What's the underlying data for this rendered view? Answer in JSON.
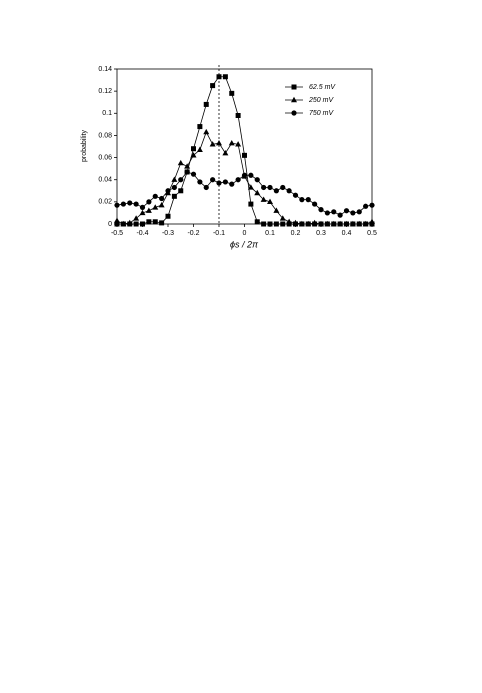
{
  "chart_data": {
    "type": "line",
    "x_label": "ϕs / 2π",
    "y_label": "probability",
    "x": [
      -0.5,
      -0.475,
      -0.45,
      -0.425,
      -0.4,
      -0.375,
      -0.35,
      -0.325,
      -0.3,
      -0.275,
      -0.25,
      -0.225,
      -0.2,
      -0.175,
      -0.15,
      -0.125,
      -0.1,
      -0.075,
      -0.05,
      -0.025,
      0,
      0.025,
      0.05,
      0.075,
      0.1,
      0.125,
      0.15,
      0.175,
      0.2,
      0.225,
      0.25,
      0.275,
      0.3,
      0.325,
      0.35,
      0.375,
      0.4,
      0.425,
      0.45,
      0.475,
      0.5
    ],
    "series": [
      {
        "name": "62.5 mV",
        "color": "#000000",
        "marker": "square",
        "values": [
          0,
          0,
          0,
          0,
          0,
          0.002,
          0.002,
          0.001,
          0.007,
          0.025,
          0.03,
          0.047,
          0.068,
          0.088,
          0.108,
          0.125,
          0.133,
          0.133,
          0.118,
          0.098,
          0.062,
          0.018,
          0.002,
          0,
          0,
          0,
          0,
          0,
          0,
          0,
          0,
          0,
          0,
          0,
          0,
          0,
          0,
          0,
          0,
          0,
          0
        ]
      },
      {
        "name": "250 mV",
        "color": "#000000",
        "marker": "triangle",
        "values": [
          0.003,
          0,
          0.001,
          0.005,
          0.01,
          0.012,
          0.015,
          0.017,
          0.028,
          0.04,
          0.055,
          0.052,
          0.062,
          0.067,
          0.083,
          0.072,
          0.073,
          0.064,
          0.073,
          0.072,
          0.043,
          0.033,
          0.028,
          0.022,
          0.02,
          0.012,
          0.005,
          0.002,
          0.001,
          0,
          0,
          0.001,
          0,
          0,
          0,
          0,
          0,
          0,
          0,
          0,
          0.002
        ]
      },
      {
        "name": "750 mV",
        "color": "#000000",
        "marker": "circle",
        "values": [
          0.017,
          0.018,
          0.019,
          0.018,
          0.015,
          0.02,
          0.025,
          0.023,
          0.03,
          0.033,
          0.04,
          0.047,
          0.045,
          0.038,
          0.033,
          0.04,
          0.037,
          0.038,
          0.036,
          0.04,
          0.044,
          0.044,
          0.04,
          0.033,
          0.033,
          0.03,
          0.033,
          0.03,
          0.026,
          0.022,
          0.022,
          0.018,
          0.013,
          0.01,
          0.011,
          0.008,
          0.012,
          0.01,
          0.011,
          0.016,
          0.017
        ]
      }
    ],
    "xlim": [
      -0.5,
      0.5
    ],
    "xticks": [
      -0.5,
      -0.4,
      -0.3,
      -0.2,
      -0.1,
      0,
      0.1,
      0.2,
      0.3,
      0.4,
      0.5
    ],
    "ylim": [
      0,
      0.14
    ],
    "yticks": [
      0,
      0.02,
      0.04,
      0.06,
      0.08,
      0.1,
      0.12,
      0.14
    ],
    "reference_line_x": -0.1,
    "legend": "upper-right",
    "grid": false
  }
}
